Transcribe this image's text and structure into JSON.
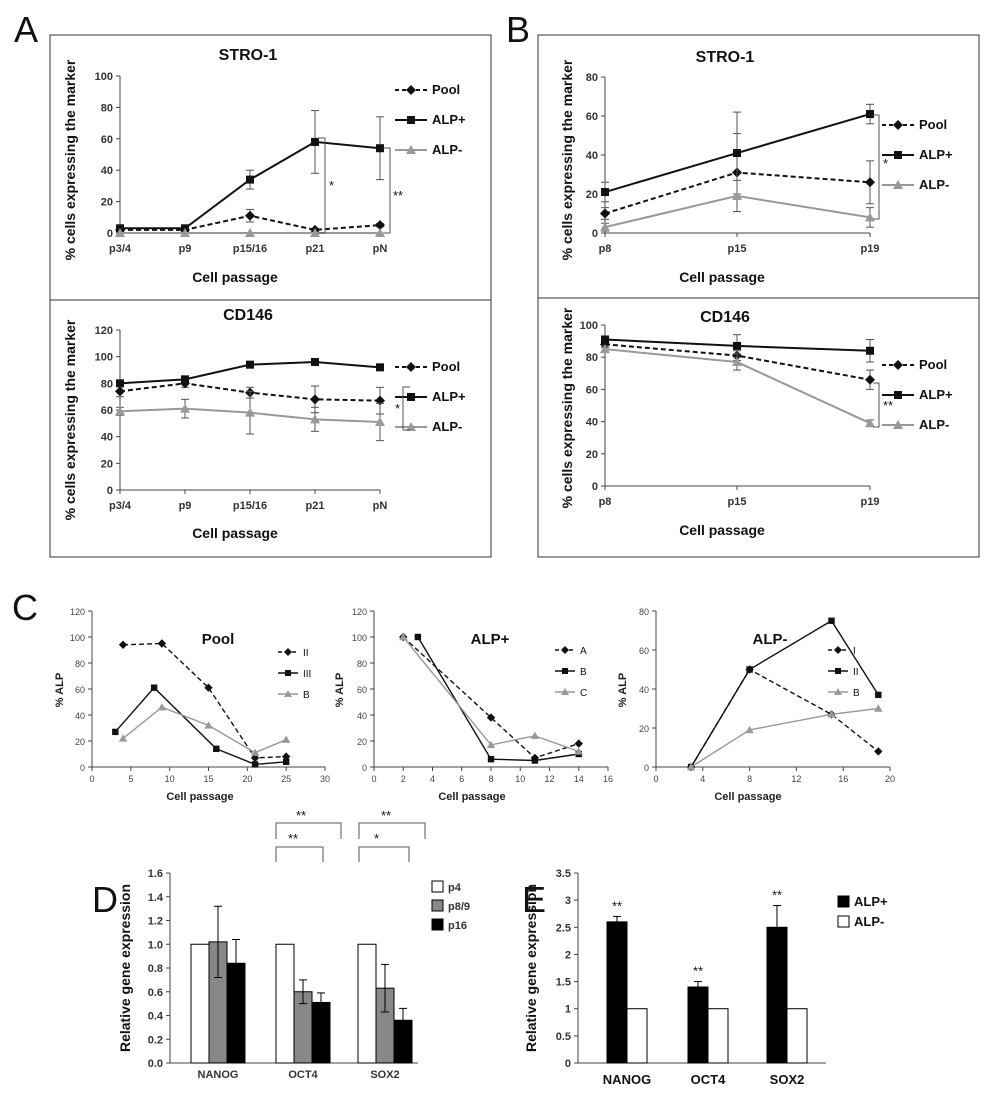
{
  "panel_labels": [
    "A",
    "B",
    "C",
    "D",
    "E"
  ],
  "chart_data": [
    {
      "id": "A-top",
      "type": "line",
      "title": "STRO-1",
      "xlabel": "Cell passage",
      "ylabel": "% cells expressing  the marker",
      "categories": [
        "p3/4",
        "p9",
        "p15/16",
        "p21",
        "pN"
      ],
      "ylim": [
        0,
        100
      ],
      "yticks": [
        "0",
        "20",
        "40",
        "60",
        "80",
        "100"
      ],
      "series": [
        {
          "name": "Pool",
          "values": [
            2,
            2,
            11,
            2,
            5
          ],
          "errors": [
            0,
            0,
            4,
            1,
            1
          ],
          "style": "dashed",
          "marker": "diamond",
          "color": "#111111"
        },
        {
          "name": "ALP+",
          "values": [
            3,
            3,
            34,
            58,
            54
          ],
          "errors": [
            1,
            1,
            6,
            20,
            20
          ],
          "style": "solid",
          "marker": "square",
          "color": "#111111"
        },
        {
          "name": "ALP-",
          "values": [
            0,
            0,
            0,
            0,
            0
          ],
          "errors": [
            0,
            0,
            0,
            0,
            0
          ],
          "style": "solid",
          "marker": "triangle",
          "color": "#999999"
        }
      ],
      "annotations": [
        "*",
        "**"
      ]
    },
    {
      "id": "A-bottom",
      "type": "line",
      "title": "CD146",
      "xlabel": "Cell passage",
      "ylabel": "% cells expressing the marker",
      "categories": [
        "p3/4",
        "p9",
        "p15/16",
        "p21",
        "pN"
      ],
      "ylim": [
        0,
        120
      ],
      "yticks": [
        "0",
        "20",
        "40",
        "60",
        "80",
        "100",
        "120"
      ],
      "series": [
        {
          "name": "Pool",
          "values": [
            74,
            80,
            73,
            68,
            67
          ],
          "errors": [
            4,
            3,
            4,
            10,
            10
          ],
          "style": "dashed",
          "marker": "diamond",
          "color": "#111111"
        },
        {
          "name": "ALP+",
          "values": [
            80,
            83,
            94,
            96,
            92
          ],
          "errors": [
            2,
            2,
            2,
            2,
            2
          ],
          "style": "solid",
          "marker": "square",
          "color": "#111111"
        },
        {
          "name": "ALP-",
          "values": [
            59,
            61,
            58,
            53,
            51
          ],
          "errors": [
            3,
            7,
            16,
            9,
            14
          ],
          "style": "solid",
          "marker": "triangle",
          "color": "#999999"
        }
      ],
      "annotations": [
        "*"
      ]
    },
    {
      "id": "B-top",
      "type": "line",
      "title": "STRO-1",
      "xlabel": "Cell passage",
      "ylabel": "% cells expressing the marker",
      "categories": [
        "p8",
        "p15",
        "p19"
      ],
      "ylim": [
        0,
        80
      ],
      "yticks": [
        "0",
        "20",
        "40",
        "60",
        "80"
      ],
      "series": [
        {
          "name": "Pool",
          "values": [
            10,
            31,
            26
          ],
          "errors": [
            3,
            20,
            11
          ],
          "style": "dashed",
          "marker": "diamond",
          "color": "#111111"
        },
        {
          "name": "ALP+",
          "values": [
            21,
            41,
            61
          ],
          "errors": [
            5,
            21,
            5
          ],
          "style": "solid",
          "marker": "square",
          "color": "#111111"
        },
        {
          "name": "ALP-",
          "values": [
            3,
            19,
            8
          ],
          "errors": [
            2,
            8,
            5
          ],
          "style": "solid",
          "marker": "triangle",
          "color": "#999999"
        }
      ],
      "annotations": [
        "*"
      ]
    },
    {
      "id": "B-bottom",
      "type": "line",
      "title": "CD146",
      "xlabel": "Cell passage",
      "ylabel": "% cells expressing the marker",
      "categories": [
        "p8",
        "p15",
        "p19"
      ],
      "ylim": [
        0,
        100
      ],
      "yticks": [
        "0",
        "20",
        "40",
        "60",
        "80",
        "100"
      ],
      "series": [
        {
          "name": "Pool",
          "values": [
            88,
            81,
            66
          ],
          "errors": [
            2,
            3,
            6
          ],
          "style": "dashed",
          "marker": "diamond",
          "color": "#111111"
        },
        {
          "name": "ALP+",
          "values": [
            91,
            87,
            84
          ],
          "errors": [
            2,
            7,
            7
          ],
          "style": "solid",
          "marker": "square",
          "color": "#111111"
        },
        {
          "name": "ALP-",
          "values": [
            85,
            77,
            39
          ],
          "errors": [
            2,
            5,
            2
          ],
          "style": "solid",
          "marker": "triangle",
          "color": "#999999"
        }
      ],
      "annotations": [
        "**"
      ]
    },
    {
      "id": "C-pool",
      "type": "line",
      "title": "Pool",
      "xlabel": "Cell passage",
      "ylabel": "% ALP",
      "xlim": [
        0,
        30
      ],
      "xticks": [
        "0",
        "5",
        "10",
        "15",
        "20",
        "25",
        "30"
      ],
      "ylim": [
        0,
        120
      ],
      "yticks": [
        "0",
        "20",
        "40",
        "60",
        "80",
        "100",
        "120"
      ],
      "series": [
        {
          "name": "II",
          "x": [
            4,
            9,
            15,
            21,
            25
          ],
          "values": [
            94,
            95,
            61,
            7,
            8
          ],
          "style": "dashed",
          "marker": "diamond",
          "color": "#111111"
        },
        {
          "name": "III",
          "x": [
            3,
            8,
            16,
            21,
            25
          ],
          "values": [
            27,
            61,
            14,
            2,
            4
          ],
          "style": "solid",
          "marker": "square",
          "color": "#111111"
        },
        {
          "name": "B",
          "x": [
            4,
            9,
            15,
            21,
            25
          ],
          "values": [
            22,
            46,
            32,
            11,
            21
          ],
          "style": "solid",
          "marker": "triangle",
          "color": "#999999"
        }
      ]
    },
    {
      "id": "C-alp-plus",
      "type": "line",
      "title": "ALP+",
      "xlabel": "Cell passage",
      "ylabel": "% ALP",
      "xlim": [
        0,
        16
      ],
      "xticks": [
        "0",
        "2",
        "4",
        "6",
        "8",
        "10",
        "12",
        "14",
        "16"
      ],
      "ylim": [
        0,
        120
      ],
      "yticks": [
        "0",
        "20",
        "40",
        "60",
        "80",
        "100",
        "120"
      ],
      "series": [
        {
          "name": "A",
          "x": [
            2,
            8,
            11,
            14
          ],
          "values": [
            100,
            38,
            7,
            18
          ],
          "style": "dashed",
          "marker": "diamond",
          "color": "#111111"
        },
        {
          "name": "B",
          "x": [
            3,
            8,
            11,
            14
          ],
          "values": [
            100,
            6,
            5,
            10
          ],
          "style": "solid",
          "marker": "square",
          "color": "#111111"
        },
        {
          "name": "C",
          "x": [
            2,
            8,
            11,
            14
          ],
          "values": [
            100,
            17,
            24,
            12
          ],
          "style": "solid",
          "marker": "triangle",
          "color": "#999999"
        }
      ]
    },
    {
      "id": "C-alp-minus",
      "type": "line",
      "title": "ALP-",
      "xlabel": "Cell passage",
      "ylabel": "% ALP",
      "xlim": [
        0,
        20
      ],
      "xticks": [
        "0",
        "4",
        "8",
        "12",
        "16",
        "20"
      ],
      "ylim": [
        0,
        80
      ],
      "yticks": [
        "0",
        "20",
        "40",
        "60",
        "80"
      ],
      "series": [
        {
          "name": "I",
          "x": [
            3,
            8,
            15,
            19
          ],
          "values": [
            0,
            50,
            27,
            8
          ],
          "style": "dashed",
          "marker": "diamond",
          "color": "#111111"
        },
        {
          "name": "II",
          "x": [
            3,
            8,
            15,
            19
          ],
          "values": [
            0,
            50,
            75,
            37
          ],
          "style": "solid",
          "marker": "square",
          "color": "#111111"
        },
        {
          "name": "B",
          "x": [
            3,
            8,
            15,
            19
          ],
          "values": [
            0,
            19,
            27,
            30
          ],
          "style": "solid",
          "marker": "triangle",
          "color": "#999999"
        }
      ]
    },
    {
      "id": "D",
      "type": "bar",
      "title": "",
      "xlabel": "",
      "ylabel": "Relative gene expression",
      "categories": [
        "NANOG",
        "OCT4",
        "SOX2"
      ],
      "ylim": [
        0,
        1.6
      ],
      "yticks": [
        "0.0",
        "0.2",
        "0.4",
        "0.6",
        "0.8",
        "1.0",
        "1.2",
        "1.4",
        "1.6"
      ],
      "series": [
        {
          "name": "p4",
          "values": [
            1.0,
            1.0,
            1.0
          ],
          "errors": [
            0,
            0,
            0
          ],
          "color": "#ffffff"
        },
        {
          "name": "p8/9",
          "values": [
            1.02,
            0.6,
            0.63
          ],
          "errors": [
            0.3,
            0.1,
            0.2
          ],
          "color": "#888888"
        },
        {
          "name": "p16",
          "values": [
            0.84,
            0.51,
            0.36
          ],
          "errors": [
            0.2,
            0.08,
            0.1
          ],
          "color": "#000000"
        }
      ],
      "annotations": [
        "**",
        "**",
        "*",
        "**"
      ]
    },
    {
      "id": "E",
      "type": "bar",
      "title": "",
      "xlabel": "",
      "ylabel": "Relative gene expression",
      "categories": [
        "NANOG",
        "OCT4",
        "SOX2"
      ],
      "ylim": [
        0,
        3.5
      ],
      "yticks": [
        "0",
        "0.5",
        "1",
        "1.5",
        "2",
        "2.5",
        "3",
        "3.5"
      ],
      "series": [
        {
          "name": "ALP+",
          "values": [
            2.6,
            1.4,
            2.5
          ],
          "errors": [
            0.1,
            0.1,
            0.4
          ],
          "color": "#000000"
        },
        {
          "name": "ALP-",
          "values": [
            1,
            1,
            1
          ],
          "errors": [
            0,
            0,
            0
          ],
          "color": "#ffffff"
        }
      ],
      "annotations": [
        "**",
        "**",
        "**"
      ]
    }
  ]
}
